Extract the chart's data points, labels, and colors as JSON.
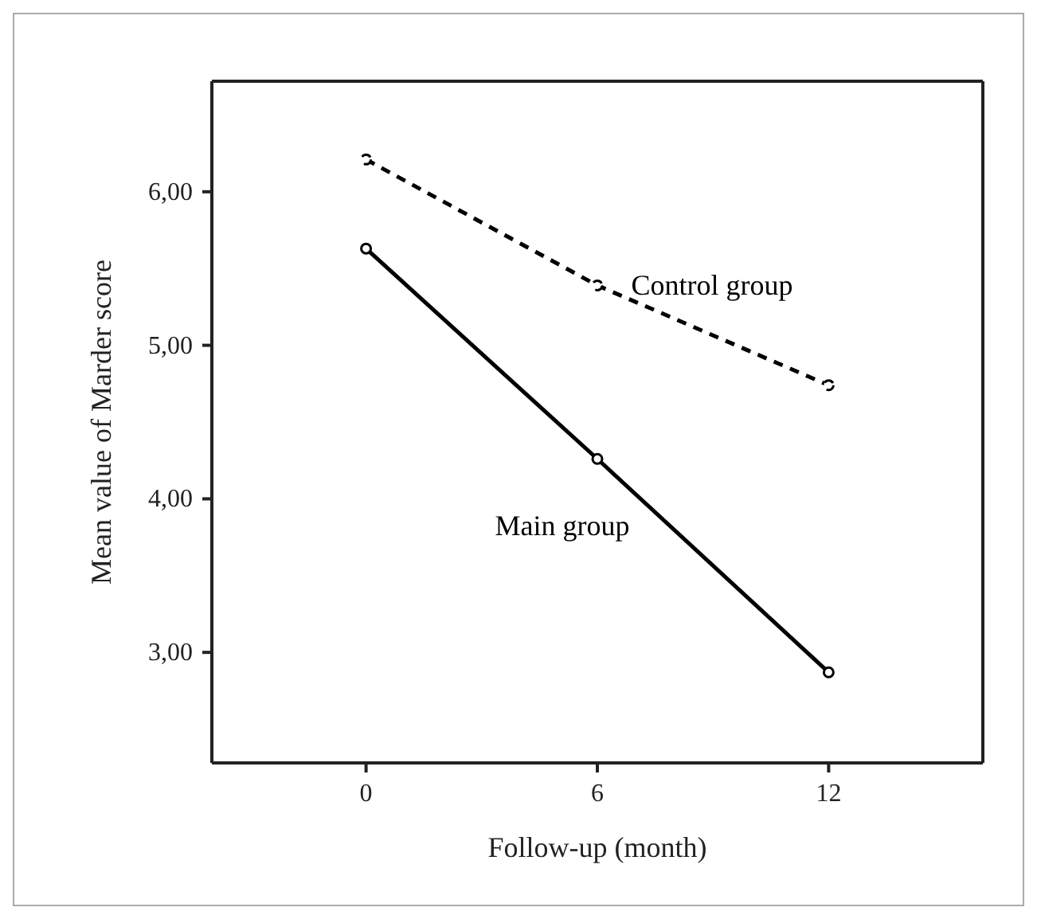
{
  "chart_data": {
    "type": "line",
    "xlabel": "Follow-up (month)",
    "ylabel": "Mean value of Marder score",
    "x": [
      0,
      6,
      12
    ],
    "series": [
      {
        "name": "Control group",
        "color": "#000000",
        "line_style": "dashed",
        "values": [
          6.21,
          5.39,
          4.74
        ]
      },
      {
        "name": "Main group",
        "color": "#000000",
        "line_style": "solid",
        "values": [
          5.63,
          4.26,
          2.87
        ]
      }
    ],
    "xlim": [
      -4,
      16
    ],
    "xticks": [
      0,
      6,
      12
    ],
    "ylim": [
      2.28,
      6.72
    ],
    "yticks": [
      {
        "value": 3,
        "label": "3,00"
      },
      {
        "value": 4,
        "label": "4,00"
      },
      {
        "value": 5,
        "label": "5,00"
      },
      {
        "value": 6,
        "label": "6,00"
      }
    ],
    "marker": "circle",
    "grid": false,
    "legend": false
  }
}
